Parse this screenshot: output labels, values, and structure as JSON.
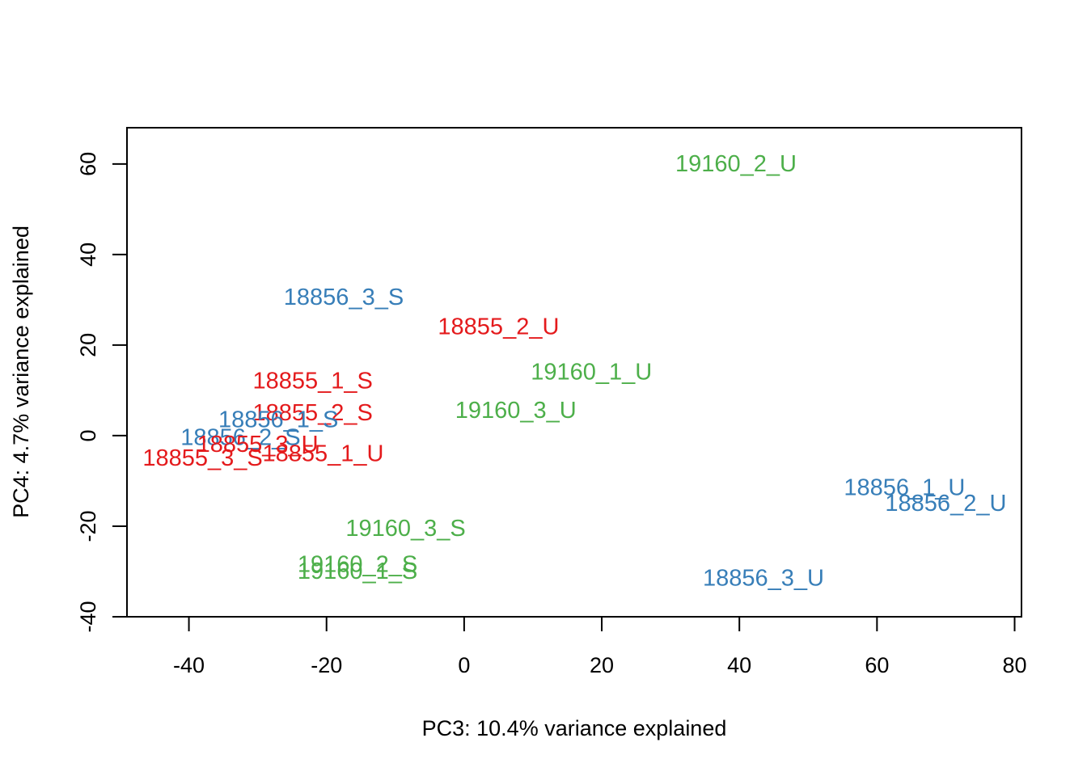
{
  "chart_data": {
    "type": "scatter",
    "title": "",
    "xlabel": "PC3: 10.4% variance explained",
    "ylabel": "PC4: 4.7% variance explained",
    "xlim": [
      -49,
      81
    ],
    "ylim": [
      -40,
      68
    ],
    "xticks": [
      -40,
      -20,
      0,
      20,
      40,
      60,
      80
    ],
    "yticks": [
      -40,
      -20,
      0,
      20,
      40,
      60
    ],
    "grid": false,
    "legend": "none",
    "group_colors": {
      "18855": "#e41a1c",
      "18856": "#377eb8",
      "19160": "#4daf4a"
    },
    "points": [
      {
        "label": "19160_2_U",
        "group": "19160",
        "x": 39.5,
        "y": 60
      },
      {
        "label": "18856_3_S",
        "group": "18856",
        "x": -17.5,
        "y": 30.5
      },
      {
        "label": "18855_2_U",
        "group": "18855",
        "x": 5,
        "y": 24
      },
      {
        "label": "18855_1_S",
        "group": "18855",
        "x": -22,
        "y": 12
      },
      {
        "label": "19160_1_U",
        "group": "19160",
        "x": 18.5,
        "y": 14
      },
      {
        "label": "18855_2_S",
        "group": "18855",
        "x": -22,
        "y": 5
      },
      {
        "label": "19160_3_U",
        "group": "19160",
        "x": 7.5,
        "y": 5.5
      },
      {
        "label": "18856_1_S",
        "group": "18856",
        "x": -27,
        "y": 3.5
      },
      {
        "label": "18856_2_S",
        "group": "18856",
        "x": -32.5,
        "y": -0.5
      },
      {
        "label": "18855_3_U",
        "group": "18855",
        "x": -30,
        "y": -2
      },
      {
        "label": "18855_1_U",
        "group": "18855",
        "x": -20.5,
        "y": -4
      },
      {
        "label": "18855_3_S",
        "group": "18855",
        "x": -38,
        "y": -5
      },
      {
        "label": "18856_1_U",
        "group": "18856",
        "x": 64,
        "y": -11.5
      },
      {
        "label": "18856_2_U",
        "group": "18856",
        "x": 70,
        "y": -15
      },
      {
        "label": "19160_3_S",
        "group": "19160",
        "x": -8.5,
        "y": -20.5
      },
      {
        "label": "19160_2_S",
        "group": "19160",
        "x": -15.5,
        "y": -28.5
      },
      {
        "label": "19160_1_S",
        "group": "19160",
        "x": -15.5,
        "y": -30
      },
      {
        "label": "18856_3_U",
        "group": "18856",
        "x": 43.5,
        "y": -31.5
      }
    ]
  }
}
